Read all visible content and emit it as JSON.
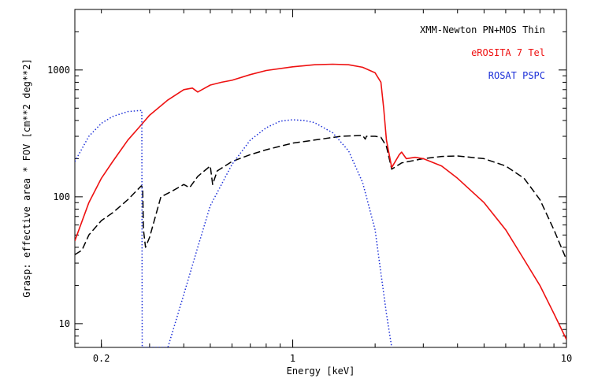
{
  "chart_data": {
    "type": "line",
    "xlabel": "Energy [keV]",
    "ylabel": "Grasp: effective area * FOV [cm**2 deg**2]",
    "xscale": "log",
    "yscale": "log",
    "xlim": [
      0.16,
      10
    ],
    "ylim": [
      6.5,
      3000
    ],
    "x_ticks": [
      {
        "value": 0.2,
        "label": "0.2"
      },
      {
        "value": 1,
        "label": "1"
      },
      {
        "value": 10,
        "label": "10"
      }
    ],
    "y_ticks": [
      {
        "value": 10,
        "label": "10"
      },
      {
        "value": 100,
        "label": "100"
      },
      {
        "value": 1000,
        "label": "1000"
      }
    ],
    "legend_position": "top-right",
    "series": [
      {
        "name": "XMM-Newton PN+MOS Thin",
        "color": "#000000",
        "style": "dashed",
        "x": [
          0.16,
          0.17,
          0.18,
          0.2,
          0.22,
          0.25,
          0.28,
          0.283,
          0.285,
          0.29,
          0.3,
          0.33,
          0.36,
          0.4,
          0.42,
          0.45,
          0.5,
          0.51,
          0.53,
          0.6,
          0.7,
          0.8,
          1.0,
          1.2,
          1.5,
          1.8,
          1.84,
          1.86,
          2.0,
          2.1,
          2.2,
          2.3,
          2.5,
          3.0,
          3.5,
          4.0,
          5.0,
          6.0,
          7.0,
          8.0,
          9.0,
          10.0
        ],
        "values": [
          35,
          38,
          50,
          65,
          75,
          95,
          122,
          118,
          55,
          40,
          48,
          100,
          110,
          125,
          118,
          145,
          175,
          125,
          160,
          190,
          215,
          235,
          265,
          280,
          300,
          305,
          285,
          300,
          300,
          295,
          250,
          165,
          185,
          200,
          208,
          210,
          200,
          175,
          140,
          95,
          55,
          32
        ]
      },
      {
        "name": "eROSITA 7 Tel",
        "color": "#ee1111",
        "style": "solid",
        "x": [
          0.16,
          0.18,
          0.2,
          0.22,
          0.25,
          0.28,
          0.3,
          0.35,
          0.4,
          0.43,
          0.45,
          0.5,
          0.55,
          0.6,
          0.7,
          0.8,
          1.0,
          1.2,
          1.4,
          1.6,
          1.8,
          2.0,
          2.1,
          2.15,
          2.2,
          2.3,
          2.45,
          2.5,
          2.6,
          2.8,
          3.0,
          3.5,
          4.0,
          5.0,
          6.0,
          7.0,
          8.0,
          9.0,
          10.0
        ],
        "values": [
          45,
          90,
          140,
          190,
          280,
          370,
          440,
          580,
          700,
          720,
          670,
          760,
          800,
          830,
          920,
          990,
          1060,
          1100,
          1110,
          1100,
          1050,
          950,
          800,
          500,
          280,
          170,
          215,
          225,
          200,
          205,
          200,
          175,
          140,
          90,
          55,
          32,
          20,
          12,
          7.5
        ]
      },
      {
        "name": "ROSAT PSPC",
        "color": "#1c2fd8",
        "style": "dotted",
        "x": [
          0.16,
          0.18,
          0.2,
          0.22,
          0.25,
          0.28,
          0.281,
          0.282,
          0.35,
          0.4,
          0.45,
          0.5,
          0.6,
          0.7,
          0.8,
          0.9,
          1.0,
          1.1,
          1.2,
          1.4,
          1.6,
          1.8,
          2.0,
          2.1,
          2.2,
          2.3
        ],
        "values": [
          190,
          300,
          380,
          430,
          470,
          480,
          480,
          6.5,
          6.5,
          17,
          40,
          85,
          180,
          280,
          350,
          395,
          405,
          400,
          385,
          320,
          230,
          130,
          55,
          25,
          12,
          6.5
        ]
      }
    ]
  }
}
